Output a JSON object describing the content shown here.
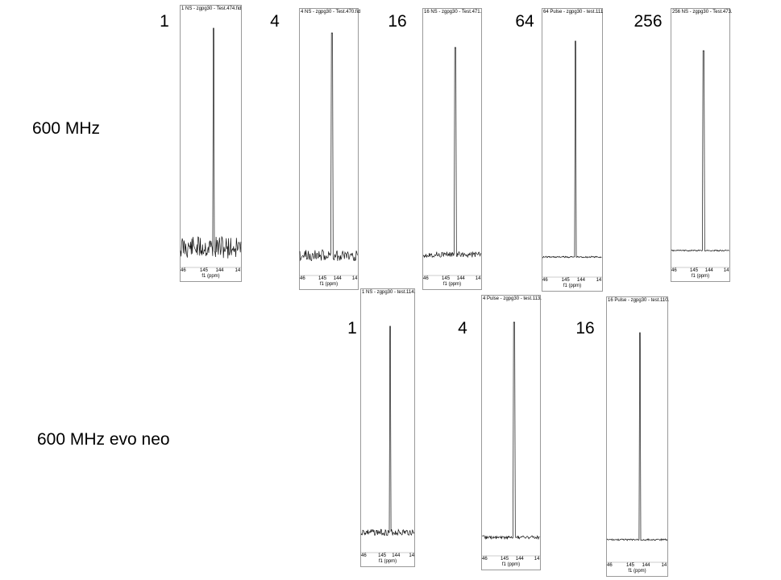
{
  "rows": [
    {
      "label": "600 MHz",
      "panels": [
        {
          "ns": "1",
          "title": "1 NS - zgpg30 - Test.474.fid",
          "ticks": [
            "46",
            "145",
            "144",
            "14"
          ],
          "noise": 0.28
        },
        {
          "ns": "4",
          "title": "4 NS - zgpg30 - Test.470.fid",
          "ticks": [
            "46",
            "145",
            "144",
            "14"
          ],
          "noise": 0.14
        },
        {
          "ns": "16",
          "title": "16 NS - zgpg30 - Test.471.",
          "ticks": [
            "46",
            "145",
            "144",
            "14"
          ],
          "noise": 0.07
        },
        {
          "ns": "64",
          "title": "64 Pulse - zgpg30 - test.111",
          "ticks": [
            "46",
            "145",
            "144",
            "14"
          ],
          "noise": 0.02
        },
        {
          "ns": "256",
          "title": "256 NS - zgpg30 - Test.473.",
          "ticks": [
            "46",
            "145",
            "144",
            "14"
          ],
          "noise": 0.015
        }
      ]
    },
    {
      "label": "600 MHz evo neo",
      "panels": [
        {
          "ns": "1",
          "title": "1 NS - zgpg30 - test.114.",
          "ticks": [
            "46",
            "145",
            "144",
            "14"
          ],
          "noise": 0.08
        },
        {
          "ns": "4",
          "title": "4 Pulse - zgpg30 - test.113.",
          "ticks": [
            "46",
            "145",
            "144",
            "14"
          ],
          "noise": 0.04
        },
        {
          "ns": "16",
          "title": "16 Pulse - zgpg30 - test.110.",
          "ticks": [
            "46",
            "145",
            "144",
            "14"
          ],
          "noise": 0.02
        }
      ]
    }
  ],
  "axis_label": "f1 (ppm)",
  "trace_color": "#111111"
}
